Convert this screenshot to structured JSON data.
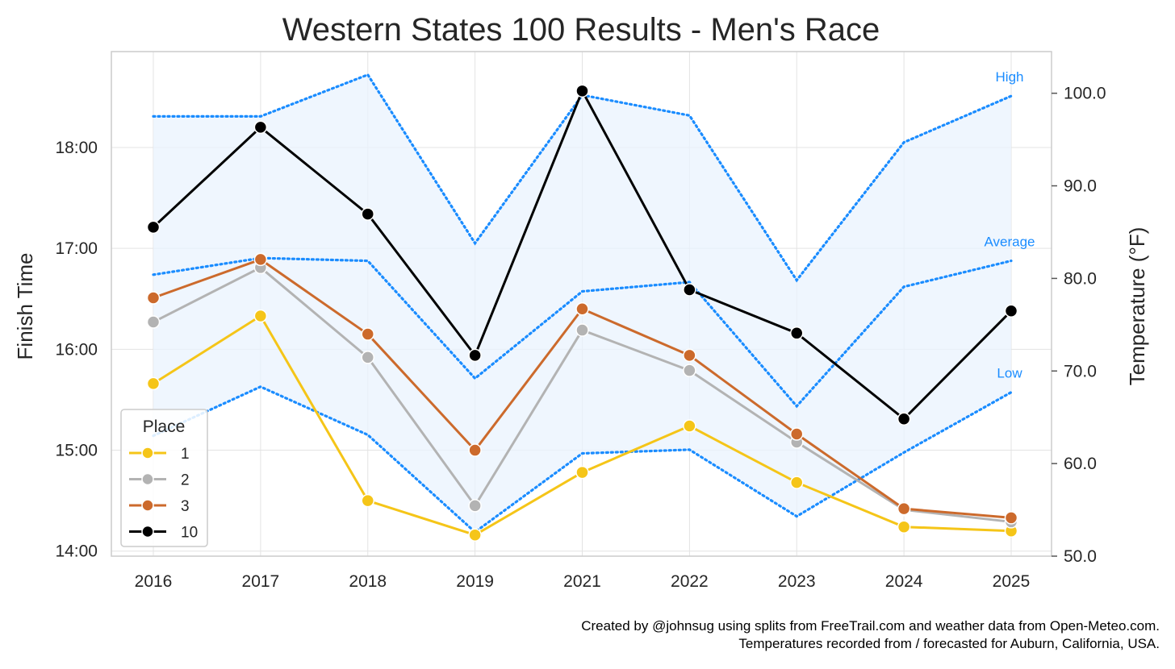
{
  "chart_data": {
    "type": "line",
    "title": "Western States 100 Results - Men's Race",
    "categories": [
      "2016",
      "2017",
      "2018",
      "2019",
      "2021",
      "2022",
      "2023",
      "2024",
      "2025"
    ],
    "left_axis": {
      "label": "Finish Time",
      "unit": "hours",
      "ylim": [
        13.95,
        18.95
      ],
      "ticks": [
        14,
        15,
        16,
        17,
        18
      ],
      "tick_labels": [
        "14:00",
        "15:00",
        "16:00",
        "17:00",
        "18:00"
      ]
    },
    "right_axis": {
      "label": "Temperature (°F)",
      "ylim": [
        50,
        104.5
      ],
      "ticks": [
        50,
        60,
        70,
        80,
        90,
        100
      ],
      "tick_labels": [
        "50.0",
        "60.0",
        "70.0",
        "80.0",
        "90.0",
        "100.0"
      ]
    },
    "legend": {
      "title": "Place",
      "placement": "bottom-left",
      "entries": [
        "1",
        "2",
        "3",
        "10"
      ]
    },
    "series": [
      {
        "name": "1",
        "color": "#f5c518",
        "values": [
          15.66,
          16.33,
          14.5,
          14.16,
          14.78,
          15.24,
          14.68,
          14.24,
          14.2
        ]
      },
      {
        "name": "2",
        "color": "#b3b3b3",
        "values": [
          16.27,
          16.81,
          15.92,
          14.45,
          16.19,
          15.79,
          15.08,
          14.41,
          14.29
        ]
      },
      {
        "name": "3",
        "color": "#cc6a2c",
        "values": [
          16.51,
          16.89,
          16.15,
          15.0,
          16.4,
          15.94,
          15.16,
          14.42,
          14.33
        ]
      },
      {
        "name": "10",
        "color": "#000000",
        "values": [
          17.21,
          18.2,
          17.34,
          15.94,
          18.56,
          16.59,
          16.16,
          15.31,
          16.38
        ]
      }
    ],
    "temperature_series": [
      {
        "name": "High",
        "color": "#1a8cff",
        "values": [
          97.5,
          97.5,
          102.0,
          83.8,
          99.8,
          97.6,
          79.8,
          94.7,
          99.7
        ]
      },
      {
        "name": "Average",
        "color": "#1a8cff",
        "values": [
          80.4,
          82.2,
          81.9,
          69.2,
          78.6,
          79.6,
          66.2,
          79.1,
          81.9
        ]
      },
      {
        "name": "Low",
        "color": "#1a8cff",
        "values": [
          63.0,
          68.3,
          63.1,
          52.6,
          61.1,
          61.5,
          54.3,
          61.2,
          67.7
        ]
      }
    ],
    "band_fill": "#eaf3fd",
    "grid": true
  },
  "footer": {
    "line1": "Created by @johnsug using splits from FreeTrail.com and weather data from Open-Meteo.com.",
    "line2": "Temperatures recorded from / forecasted for Auburn, California, USA."
  }
}
